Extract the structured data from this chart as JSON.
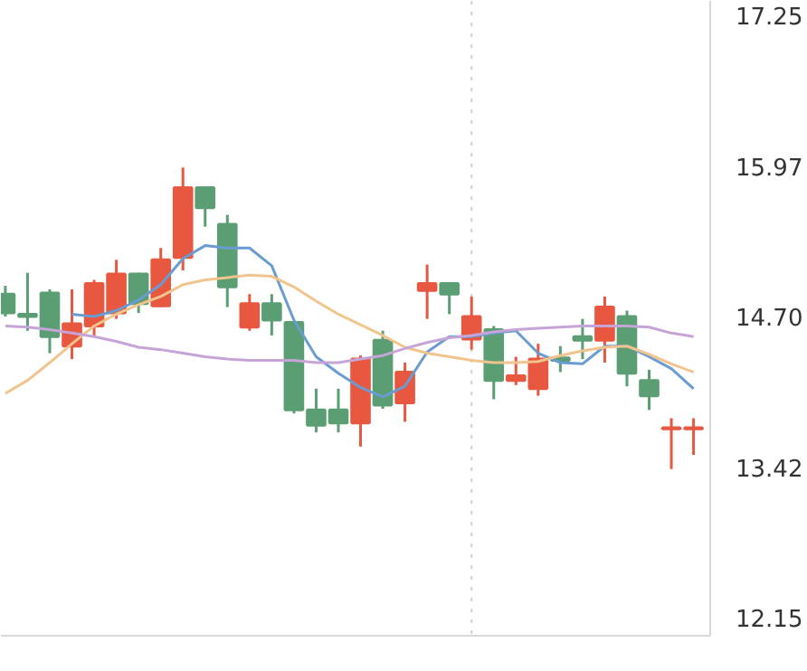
{
  "chart_data": {
    "type": "candlestick",
    "categories": [
      null,
      null,
      null,
      null,
      null,
      null,
      null,
      null,
      null,
      null,
      null,
      null,
      null,
      null,
      null,
      null,
      null,
      null,
      null,
      null,
      null,
      null,
      null,
      null,
      null,
      null,
      null,
      null,
      null,
      null,
      null,
      null
    ],
    "ohlc": [
      [
        14.89,
        14.96,
        14.7,
        14.73
      ],
      [
        14.72,
        15.07,
        14.58,
        14.7
      ],
      [
        14.9,
        14.93,
        14.39,
        14.53
      ],
      [
        14.45,
        14.93,
        14.34,
        14.64
      ],
      [
        14.62,
        15.01,
        14.54,
        14.98
      ],
      [
        14.73,
        15.18,
        14.68,
        15.06
      ],
      [
        15.06,
        15.07,
        14.73,
        14.81
      ],
      [
        14.79,
        15.28,
        14.78,
        15.18
      ],
      [
        15.2,
        15.96,
        15.09,
        15.79
      ],
      [
        15.79,
        15.8,
        15.46,
        15.62
      ],
      [
        15.48,
        15.56,
        14.78,
        14.95
      ],
      [
        14.61,
        14.89,
        14.58,
        14.81
      ],
      [
        14.81,
        14.89,
        14.54,
        14.67
      ],
      [
        14.65,
        14.65,
        13.88,
        13.91
      ],
      [
        13.91,
        14.09,
        13.72,
        13.78
      ],
      [
        13.91,
        14.09,
        13.72,
        13.8
      ],
      [
        13.8,
        14.37,
        13.6,
        14.34
      ],
      [
        14.5,
        14.58,
        13.92,
        13.95
      ],
      [
        13.97,
        14.31,
        13.81,
        14.23
      ],
      [
        14.92,
        15.14,
        14.68,
        14.98
      ],
      [
        14.98,
        14.98,
        14.72,
        14.89
      ],
      [
        14.51,
        14.87,
        14.42,
        14.7
      ],
      [
        14.59,
        14.62,
        14.0,
        14.16
      ],
      [
        14.16,
        14.36,
        14.12,
        14.2
      ],
      [
        14.09,
        14.47,
        14.03,
        14.34
      ],
      [
        14.35,
        14.45,
        14.23,
        14.33
      ],
      [
        14.53,
        14.68,
        14.34,
        14.5
      ],
      [
        14.5,
        14.87,
        14.31,
        14.78
      ],
      [
        14.7,
        14.75,
        14.11,
        14.22
      ],
      [
        14.16,
        14.25,
        13.91,
        14.03
      ],
      [
        13.75,
        13.84,
        13.41,
        13.76
      ],
      [
        13.75,
        13.84,
        13.53,
        13.76
      ]
    ],
    "colors": [
      "#5b9e74",
      "#5b9e74",
      "#5b9e74",
      "#e8573f",
      "#e8573f",
      "#e8573f",
      "#5b9e74",
      "#e8573f",
      "#e8573f",
      "#5b9e74",
      "#5b9e74",
      "#e8573f",
      "#5b9e74",
      "#5b9e74",
      "#5b9e74",
      "#5b9e74",
      "#e8573f",
      "#5b9e74",
      "#e8573f",
      "#e8573f",
      "#5b9e74",
      "#e8573f",
      "#5b9e74",
      "#e8573f",
      "#e8573f",
      "#5b9e74",
      "#5b9e74",
      "#e8573f",
      "#5b9e74",
      "#5b9e74",
      "#e8573f",
      "#e8573f"
    ],
    "series": [
      {
        "type": "line",
        "color": "#6a9bd1",
        "values": [
          null,
          null,
          null,
          14.72,
          14.7,
          14.75,
          14.84,
          14.97,
          15.19,
          15.3,
          15.28,
          15.28,
          15.13,
          14.67,
          14.36,
          14.22,
          14.1,
          14.02,
          14.11,
          14.4,
          14.53,
          14.53,
          14.56,
          14.58,
          14.39,
          14.31,
          14.3,
          14.45,
          14.45,
          14.36,
          14.26,
          14.09
        ]
      },
      {
        "type": "line",
        "color": "#f2c48d",
        "values": [
          14.05,
          14.16,
          14.31,
          14.47,
          14.62,
          14.72,
          14.8,
          14.87,
          14.97,
          15.01,
          15.03,
          15.05,
          15.04,
          14.95,
          14.83,
          14.72,
          14.63,
          14.54,
          14.44,
          14.39,
          14.36,
          14.33,
          14.31,
          14.31,
          14.32,
          14.37,
          14.41,
          14.44,
          14.45,
          14.38,
          14.3,
          14.23
        ]
      },
      {
        "type": "line",
        "color": "#c6a4d8",
        "values": [
          14.62,
          14.61,
          14.59,
          14.56,
          14.53,
          14.49,
          14.44,
          14.42,
          14.39,
          14.36,
          14.34,
          14.33,
          14.33,
          14.33,
          14.31,
          14.31,
          14.34,
          14.37,
          14.43,
          14.48,
          14.52,
          14.54,
          14.57,
          14.59,
          14.6,
          14.61,
          14.62,
          14.62,
          14.62,
          14.61,
          14.56,
          14.53
        ]
      }
    ],
    "ylim": [
      12.0,
      17.37
    ],
    "yticks": [
      {
        "value": 12.15,
        "label": "12.15"
      },
      {
        "value": 13.42,
        "label": "13.42"
      },
      {
        "value": 14.7,
        "label": "14.70"
      },
      {
        "value": 15.97,
        "label": "15.97"
      },
      {
        "value": 17.25,
        "label": "17.25"
      }
    ],
    "tick_labels": "y",
    "grid": false
  }
}
